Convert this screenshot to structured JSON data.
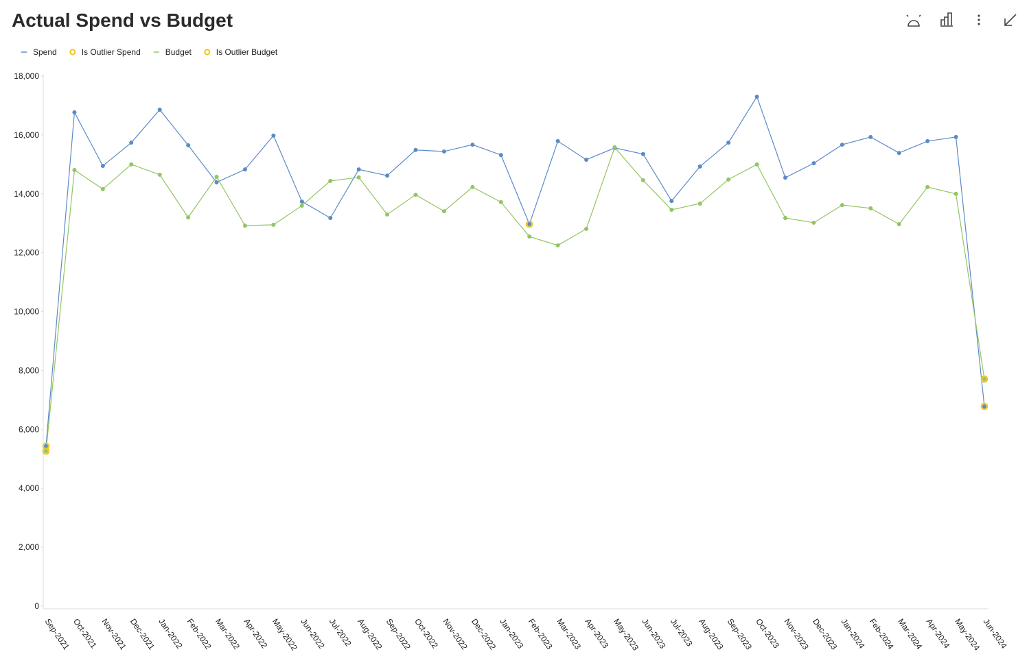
{
  "chart_data": {
    "type": "line",
    "title": "Actual Spend vs Budget",
    "categories": [
      "Sep-2021",
      "Oct-2021",
      "Nov-2021",
      "Dec-2021",
      "Jan-2022",
      "Feb-2022",
      "Mar-2022",
      "Apr-2022",
      "May-2022",
      "Jun-2022",
      "Jul-2022",
      "Aug-2022",
      "Sep-2022",
      "Oct-2022",
      "Nov-2022",
      "Dec-2022",
      "Jan-2023",
      "Feb-2023",
      "Mar-2023",
      "Apr-2023",
      "May-2023",
      "Jun-2023",
      "Jul-2023",
      "Aug-2023",
      "Sep-2023",
      "Oct-2023",
      "Nov-2023",
      "Dec-2023",
      "Jan-2024",
      "Feb-2024",
      "Mar-2024",
      "Apr-2024",
      "May-2024",
      "Jun-2024"
    ],
    "series": [
      {
        "name": "Spend",
        "color": "#5b8ac6",
        "line": true,
        "values": [
          5430,
          16770,
          14950,
          15740,
          16860,
          15650,
          14390,
          14830,
          15980,
          13740,
          13180,
          14830,
          14620,
          15490,
          15440,
          15670,
          15320,
          12970,
          15790,
          15160,
          15560,
          15350,
          13760,
          14930,
          15740,
          17300,
          14550,
          15040,
          15670,
          15930,
          15390,
          15790,
          15930,
          6780
        ]
      },
      {
        "name": "Is Outlier Spend",
        "color": "#f2c418",
        "line": false,
        "values": [
          5430,
          null,
          null,
          null,
          null,
          null,
          null,
          null,
          null,
          null,
          null,
          null,
          null,
          null,
          null,
          null,
          null,
          12970,
          null,
          null,
          null,
          null,
          null,
          null,
          null,
          null,
          null,
          null,
          null,
          null,
          null,
          null,
          null,
          6780
        ]
      },
      {
        "name": "Budget",
        "color": "#93c562",
        "line": true,
        "values": [
          5260,
          14810,
          14160,
          15000,
          14650,
          13200,
          14580,
          12920,
          12950,
          13600,
          14440,
          14560,
          13300,
          13970,
          13410,
          14230,
          13720,
          12550,
          12250,
          12810,
          15580,
          14460,
          13460,
          13670,
          14490,
          15000,
          13180,
          13020,
          13620,
          13510,
          12970,
          14230,
          14000,
          7710
        ]
      },
      {
        "name": "Is Outlier Budget",
        "color": "#f2c418",
        "line": false,
        "values": [
          5260,
          null,
          null,
          null,
          null,
          null,
          null,
          null,
          null,
          null,
          null,
          null,
          null,
          null,
          null,
          null,
          null,
          null,
          null,
          null,
          null,
          null,
          null,
          null,
          null,
          null,
          null,
          null,
          null,
          null,
          null,
          null,
          null,
          7710
        ]
      }
    ],
    "ylim": [
      0,
      18000
    ],
    "yticks": [
      0,
      {
        "value": 2000,
        "label": "2,000"
      },
      {
        "value": 4000,
        "label": "4,000"
      },
      {
        "value": 6000,
        "label": "6,000"
      },
      {
        "value": 8000,
        "label": "8,000"
      },
      {
        "value": 10000,
        "label": "10,000"
      },
      {
        "value": 12000,
        "label": "12,000"
      },
      {
        "value": 14000,
        "label": "14,000"
      },
      {
        "value": 16000,
        "label": "16,000"
      },
      {
        "value": 18000,
        "label": "18,000"
      }
    ],
    "grid": false,
    "legend": "top-left"
  }
}
